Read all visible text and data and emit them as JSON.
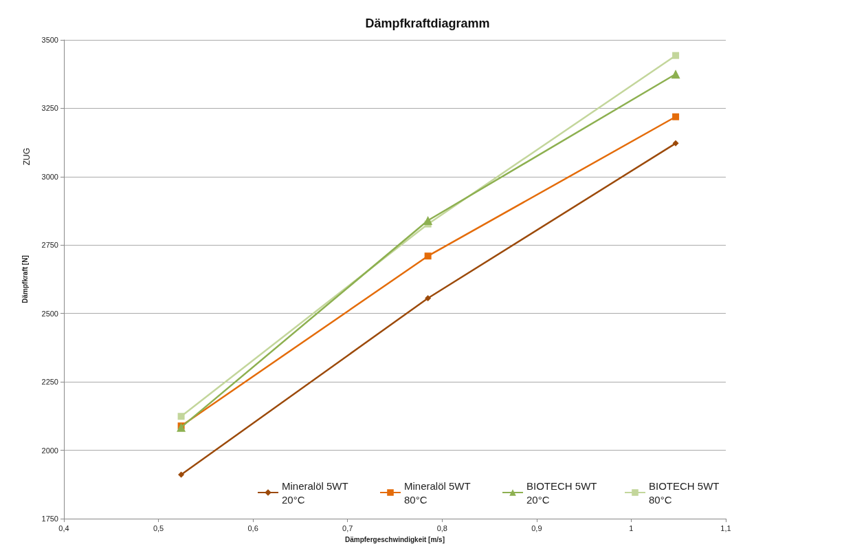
{
  "chart_data": {
    "type": "line",
    "title": "Dämpfkraftdiagramm",
    "xlabel": "Dämpfergeschwindigkeit [m/s]",
    "ylabel": "Dämpfkraft [N]",
    "annotations": [
      "ZUG"
    ],
    "x": [
      0.524,
      0.785,
      1.047
    ],
    "series": [
      {
        "name": "Mineralöl 5WT 20°C",
        "color": "#9c4a0a",
        "marker": "diamond",
        "values": [
          1911,
          2556,
          3122
        ]
      },
      {
        "name": "Mineralöl 5WT 80°C",
        "color": "#e46c0a",
        "marker": "square",
        "values": [
          2089,
          2710,
          3219
        ]
      },
      {
        "name": "BIOTECH 5WT 20°C",
        "color": "#8db050",
        "marker": "triangle",
        "values": [
          2084,
          2840,
          3375
        ]
      },
      {
        "name": "BIOTECH 5WT 80°C",
        "color": "#c3d69b",
        "marker": "square",
        "values": [
          2124,
          2827,
          3443
        ]
      }
    ],
    "xlim": [
      0.4,
      1.1
    ],
    "xticks": [
      {
        "value": 0.4,
        "label": "0,4"
      },
      {
        "value": 0.5,
        "label": "0,5"
      },
      {
        "value": 0.6,
        "label": "0,6"
      },
      {
        "value": 0.7,
        "label": "0,7"
      },
      {
        "value": 0.8,
        "label": "0,8"
      },
      {
        "value": 0.9,
        "label": "0,9"
      },
      {
        "value": 1,
        "label": "1"
      },
      {
        "value": 1.1,
        "label": "1,1"
      }
    ],
    "ylim": [
      1750,
      3500
    ],
    "yticks": [
      1750,
      2000,
      2250,
      2500,
      2750,
      3000,
      3250,
      3500
    ],
    "grid": "y",
    "legend": "bottom right",
    "line_style": "solid"
  }
}
